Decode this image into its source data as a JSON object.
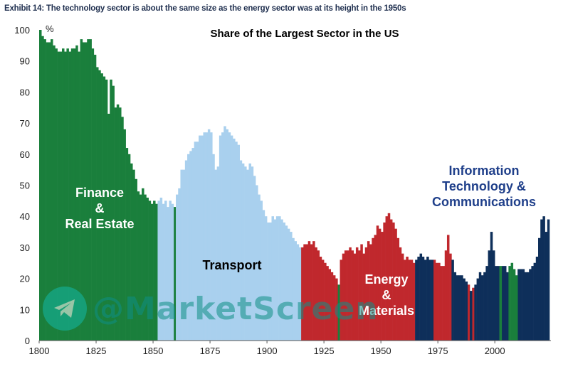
{
  "exhibit_title": "Exhibit 14: The technology sector is about the same size as the energy sector was at its height in the 1950s",
  "watermark": {
    "text": "@MarketScreen",
    "icon": "telegram-icon",
    "color": "#14b8a6"
  },
  "chart_data": {
    "type": "bar",
    "title": "Share of the Largest Sector in the US",
    "xlabel": "",
    "ylabel": "%",
    "xlim": [
      1800,
      2023
    ],
    "ylim": [
      0,
      100
    ],
    "x_ticks": [
      "1800",
      "1825",
      "1850",
      "1875",
      "1900",
      "1925",
      "1950",
      "1975",
      "2000"
    ],
    "y_ticks": [
      "0",
      "10",
      "20",
      "30",
      "40",
      "50",
      "60",
      "70",
      "80",
      "90",
      "100"
    ],
    "grid": false,
    "legend": "none",
    "sector_labels": [
      {
        "text": "Finance\n&\nReal Estate",
        "color": "#ffffff",
        "size": 18
      },
      {
        "text": "Transport",
        "color": "#000000",
        "size": 18
      },
      {
        "text": "Energy\n&\nMaterials",
        "color": "#ffffff",
        "size": 18
      },
      {
        "text": "Information\nTechnology &\nCommunications",
        "color": "#1f3f8a",
        "size": 18
      }
    ],
    "series": [
      {
        "name": "Finance & Real Estate",
        "color": "#1a7f3c",
        "points": [
          [
            1800,
            100
          ],
          [
            1801,
            98
          ],
          [
            1802,
            97
          ],
          [
            1803,
            96
          ],
          [
            1804,
            96
          ],
          [
            1805,
            97
          ],
          [
            1806,
            95
          ],
          [
            1807,
            94
          ],
          [
            1808,
            93
          ],
          [
            1809,
            93
          ],
          [
            1810,
            94
          ],
          [
            1811,
            93
          ],
          [
            1812,
            94
          ],
          [
            1813,
            93
          ],
          [
            1814,
            94
          ],
          [
            1815,
            94
          ],
          [
            1816,
            95
          ],
          [
            1817,
            93
          ],
          [
            1818,
            97
          ],
          [
            1819,
            96
          ],
          [
            1820,
            96
          ],
          [
            1821,
            97
          ],
          [
            1822,
            97
          ],
          [
            1823,
            94
          ],
          [
            1824,
            92
          ],
          [
            1825,
            88
          ],
          [
            1826,
            87
          ],
          [
            1827,
            86
          ],
          [
            1828,
            85
          ],
          [
            1829,
            84
          ],
          [
            1830,
            73
          ],
          [
            1831,
            84
          ],
          [
            1832,
            82
          ],
          [
            1833,
            75
          ],
          [
            1834,
            76
          ],
          [
            1835,
            75
          ],
          [
            1836,
            72
          ],
          [
            1837,
            68
          ],
          [
            1838,
            62
          ],
          [
            1839,
            60
          ],
          [
            1840,
            57
          ],
          [
            1841,
            55
          ],
          [
            1842,
            52
          ],
          [
            1843,
            48
          ],
          [
            1844,
            47
          ],
          [
            1845,
            49
          ],
          [
            1846,
            47
          ],
          [
            1847,
            46
          ],
          [
            1848,
            45
          ],
          [
            1849,
            44
          ],
          [
            1850,
            45
          ],
          [
            1851,
            44
          ],
          [
            1859,
            43
          ],
          [
            1931,
            18
          ]
        ]
      },
      {
        "name": "Transport",
        "color": "#a9d0ee",
        "points": [
          [
            1852,
            45
          ],
          [
            1853,
            46
          ],
          [
            1854,
            44
          ],
          [
            1855,
            45
          ],
          [
            1856,
            43
          ],
          [
            1857,
            45
          ],
          [
            1858,
            44
          ],
          [
            1860,
            47
          ],
          [
            1861,
            49
          ],
          [
            1862,
            55
          ],
          [
            1863,
            55
          ],
          [
            1864,
            58
          ],
          [
            1865,
            60
          ],
          [
            1866,
            61
          ],
          [
            1867,
            62
          ],
          [
            1868,
            64
          ],
          [
            1869,
            64
          ],
          [
            1870,
            66
          ],
          [
            1871,
            66
          ],
          [
            1872,
            67
          ],
          [
            1873,
            67
          ],
          [
            1874,
            68
          ],
          [
            1875,
            67
          ],
          [
            1876,
            60
          ],
          [
            1877,
            55
          ],
          [
            1878,
            56
          ],
          [
            1879,
            66
          ],
          [
            1880,
            67
          ],
          [
            1881,
            69
          ],
          [
            1882,
            68
          ],
          [
            1883,
            67
          ],
          [
            1884,
            66
          ],
          [
            1885,
            65
          ],
          [
            1886,
            64
          ],
          [
            1887,
            63
          ],
          [
            1888,
            58
          ],
          [
            1889,
            57
          ],
          [
            1890,
            56
          ],
          [
            1891,
            55
          ],
          [
            1892,
            57
          ],
          [
            1893,
            56
          ],
          [
            1894,
            53
          ],
          [
            1895,
            50
          ],
          [
            1896,
            47
          ],
          [
            1897,
            45
          ],
          [
            1898,
            42
          ],
          [
            1899,
            40
          ],
          [
            1900,
            38
          ],
          [
            1901,
            38
          ],
          [
            1902,
            40
          ],
          [
            1903,
            39
          ],
          [
            1904,
            40
          ],
          [
            1905,
            40
          ],
          [
            1906,
            39
          ],
          [
            1907,
            38
          ],
          [
            1908,
            37
          ],
          [
            1909,
            36
          ],
          [
            1910,
            35
          ],
          [
            1911,
            33
          ],
          [
            1912,
            32
          ],
          [
            1913,
            31
          ],
          [
            1914,
            30
          ]
        ]
      },
      {
        "name": "Energy & Materials",
        "color": "#c0282d",
        "points": [
          [
            1915,
            30
          ],
          [
            1916,
            31
          ],
          [
            1917,
            31
          ],
          [
            1918,
            32
          ],
          [
            1919,
            31
          ],
          [
            1920,
            32
          ],
          [
            1921,
            30
          ],
          [
            1922,
            29
          ],
          [
            1923,
            27
          ],
          [
            1924,
            26
          ],
          [
            1925,
            25
          ],
          [
            1926,
            24
          ],
          [
            1927,
            23
          ],
          [
            1928,
            22
          ],
          [
            1929,
            21
          ],
          [
            1930,
            20
          ],
          [
            1932,
            26
          ],
          [
            1933,
            28
          ],
          [
            1934,
            29
          ],
          [
            1935,
            29
          ],
          [
            1936,
            30
          ],
          [
            1937,
            29
          ],
          [
            1938,
            28
          ],
          [
            1939,
            30
          ],
          [
            1940,
            29
          ],
          [
            1941,
            31
          ],
          [
            1942,
            28
          ],
          [
            1943,
            30
          ],
          [
            1944,
            32
          ],
          [
            1945,
            31
          ],
          [
            1946,
            33
          ],
          [
            1947,
            34
          ],
          [
            1948,
            37
          ],
          [
            1949,
            36
          ],
          [
            1950,
            35
          ],
          [
            1951,
            38
          ],
          [
            1952,
            40
          ],
          [
            1953,
            41
          ],
          [
            1954,
            39
          ],
          [
            1955,
            38
          ],
          [
            1956,
            36
          ],
          [
            1957,
            33
          ],
          [
            1958,
            30
          ],
          [
            1959,
            28
          ],
          [
            1960,
            26
          ],
          [
            1961,
            27
          ],
          [
            1962,
            26
          ],
          [
            1963,
            26
          ],
          [
            1964,
            25
          ],
          [
            1973,
            26
          ],
          [
            1974,
            25
          ],
          [
            1975,
            25
          ],
          [
            1976,
            24
          ],
          [
            1977,
            24
          ],
          [
            1978,
            29
          ],
          [
            1979,
            34
          ],
          [
            1980,
            28
          ],
          [
            1988,
            18
          ],
          [
            1990,
            17
          ]
        ]
      },
      {
        "name": "Information Technology & Communications",
        "color": "#0e2f5a",
        "points": [
          [
            1965,
            26
          ],
          [
            1966,
            27
          ],
          [
            1967,
            28
          ],
          [
            1968,
            27
          ],
          [
            1969,
            26
          ],
          [
            1970,
            27
          ],
          [
            1971,
            26
          ],
          [
            1972,
            26
          ],
          [
            1981,
            26
          ],
          [
            1982,
            22
          ],
          [
            1983,
            21
          ],
          [
            1984,
            21
          ],
          [
            1985,
            21
          ],
          [
            1986,
            20
          ],
          [
            1987,
            19
          ],
          [
            1989,
            16
          ],
          [
            1991,
            18
          ],
          [
            1992,
            20
          ],
          [
            1993,
            22
          ],
          [
            1994,
            21
          ],
          [
            1995,
            22
          ],
          [
            1996,
            24
          ],
          [
            1997,
            29
          ],
          [
            1998,
            35
          ],
          [
            1999,
            29
          ],
          [
            2000,
            24
          ],
          [
            2001,
            24
          ],
          [
            2003,
            24
          ],
          [
            2004,
            24
          ],
          [
            2005,
            22
          ],
          [
            2010,
            23
          ],
          [
            2011,
            23
          ],
          [
            2012,
            23
          ],
          [
            2013,
            22
          ],
          [
            2014,
            22
          ],
          [
            2015,
            23
          ],
          [
            2016,
            24
          ],
          [
            2017,
            25
          ],
          [
            2018,
            27
          ],
          [
            2019,
            33
          ],
          [
            2020,
            39
          ],
          [
            2021,
            40
          ],
          [
            2022,
            35
          ],
          [
            2023,
            39
          ]
        ]
      },
      {
        "name": "Communications (green)",
        "color": "#1a7f3c",
        "points": [
          [
            2002,
            24
          ],
          [
            2006,
            24
          ],
          [
            2007,
            25
          ],
          [
            2008,
            23
          ],
          [
            2009,
            21
          ]
        ]
      }
    ]
  }
}
